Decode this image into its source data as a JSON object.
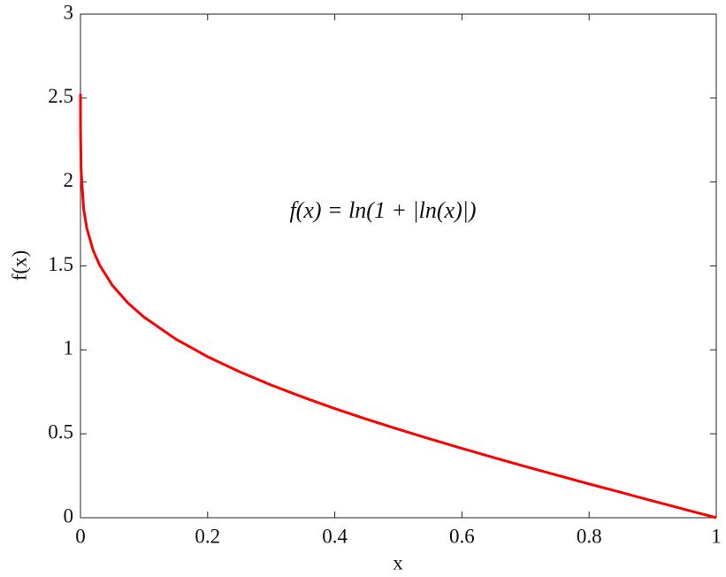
{
  "chart_data": {
    "type": "line",
    "x_label": "x",
    "y_label": "f(x)",
    "annotation": "f(x) = ln(1 + |ln(x)|)",
    "x": [
      1e-05,
      0.0001,
      0.001,
      0.005,
      0.01,
      0.02,
      0.03,
      0.05,
      0.075,
      0.1,
      0.15,
      0.2,
      0.25,
      0.3,
      0.35,
      0.4,
      0.45,
      0.5,
      0.55,
      0.6,
      0.65,
      0.7,
      0.75,
      0.8,
      0.85,
      0.9,
      0.95,
      1
    ],
    "values": [
      2.527,
      2.323,
      2.068,
      1.84,
      1.724,
      1.592,
      1.506,
      1.385,
      1.278,
      1.195,
      1.064,
      0.959,
      0.87,
      0.79,
      0.718,
      0.65,
      0.587,
      0.527,
      0.469,
      0.413,
      0.358,
      0.305,
      0.253,
      0.201,
      0.151,
      0.1,
      0.05,
      0
    ],
    "color": "#ff0000",
    "xlim": [
      0,
      1
    ],
    "xticks": [
      0,
      0.2,
      0.4,
      0.6,
      0.8,
      1
    ],
    "ylim": [
      0,
      3
    ],
    "yticks": [
      0,
      0.5,
      1,
      1.5,
      2,
      2.5,
      3
    ],
    "grid": false
  }
}
